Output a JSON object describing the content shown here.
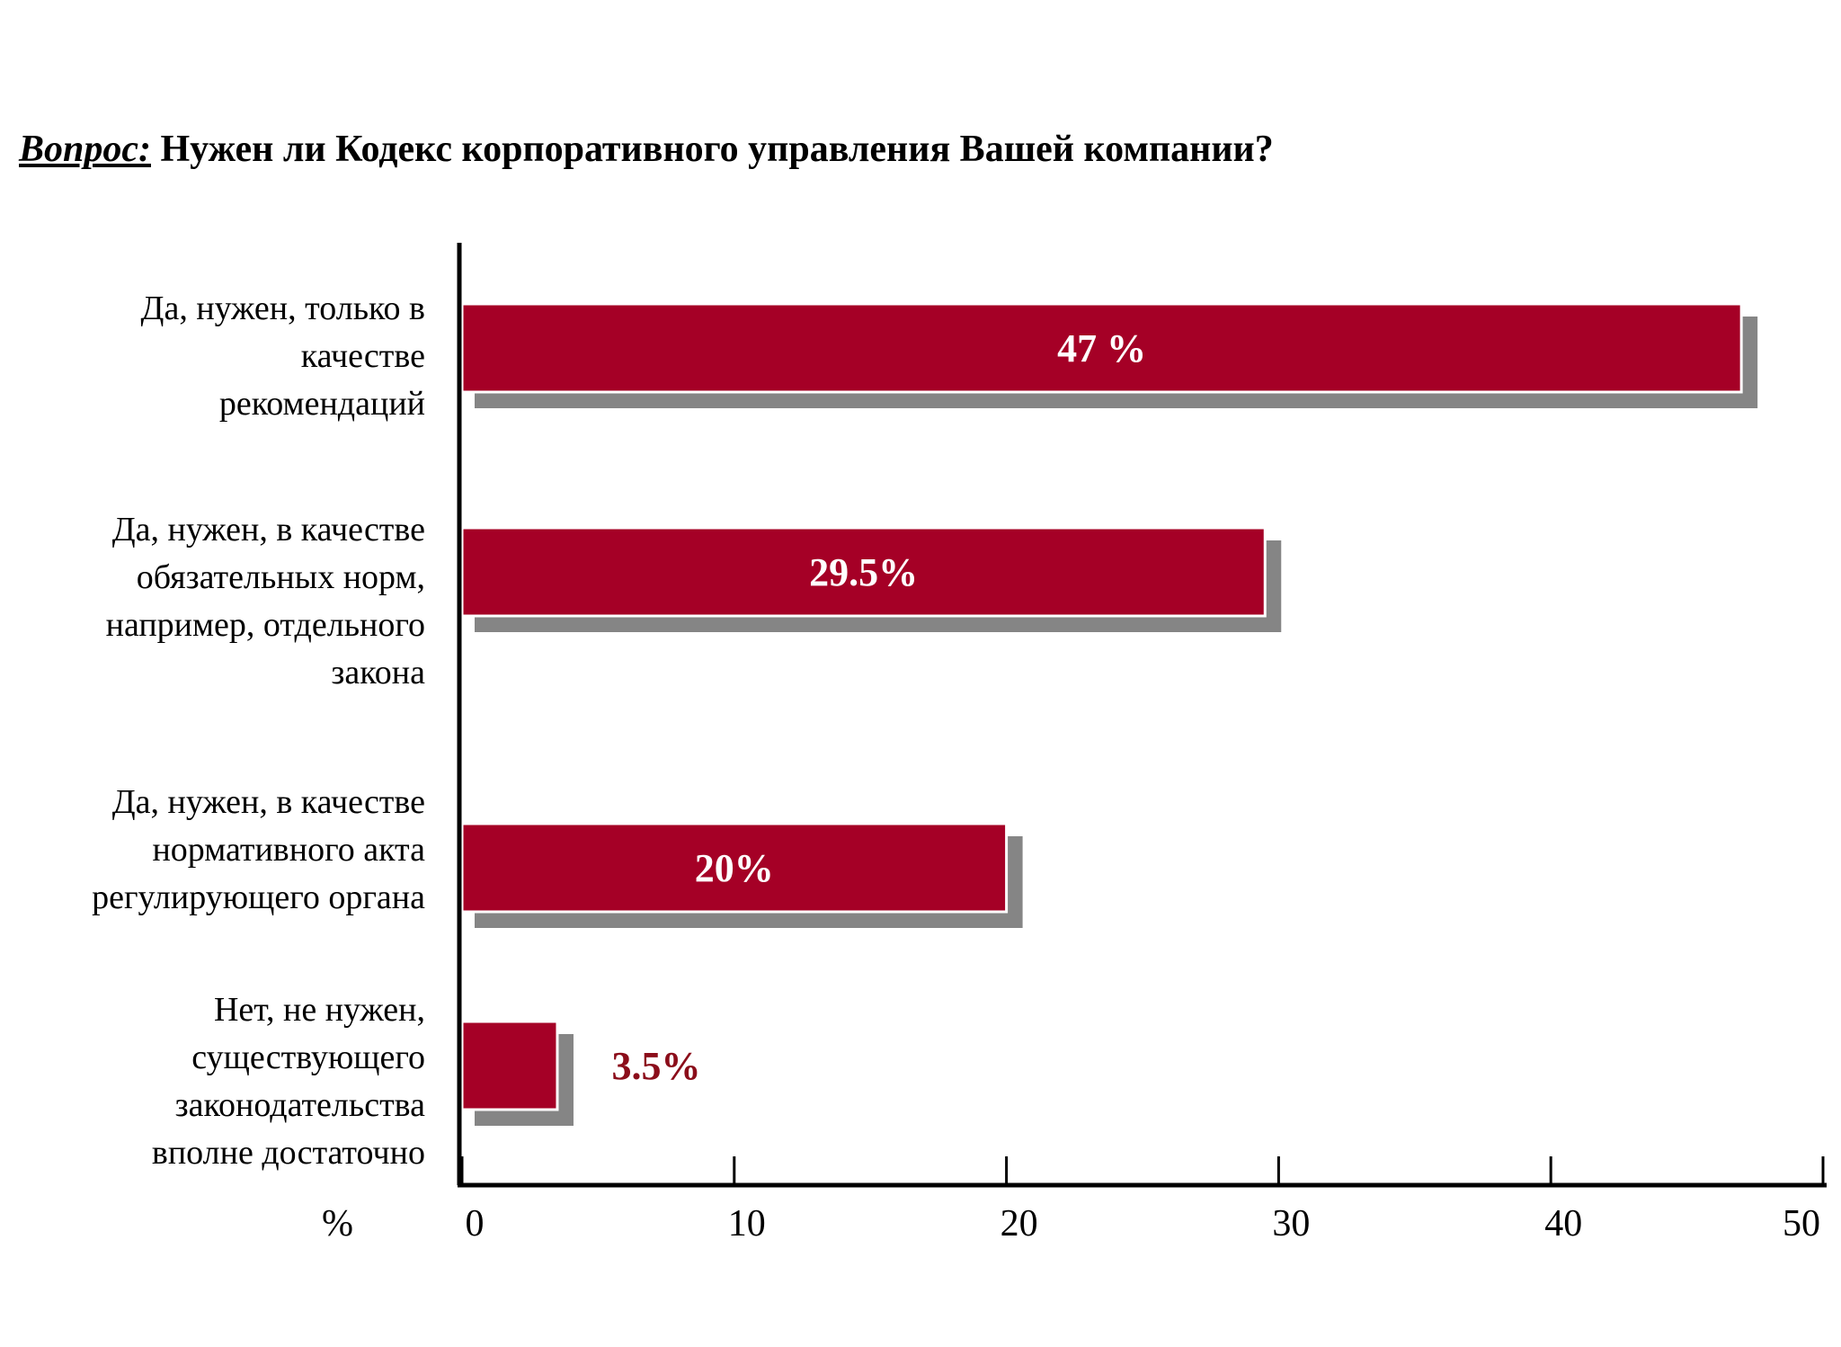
{
  "title": {
    "question": "Вопрос:",
    "text": " Нужен ли Кодекс корпоративного управления Вашей компании?"
  },
  "colors": {
    "bar": "#a50026",
    "shadow": "#858585",
    "axis": "#000000",
    "value_outside": "#8b0d1a",
    "value_inside": "#ffffff"
  },
  "chart_data": {
    "type": "bar",
    "orientation": "horizontal",
    "title": "Вопрос: Нужен ли Кодекс корпоративного управления Вашей компании?",
    "xlabel": "%",
    "ylabel": "",
    "xlim": [
      0,
      50
    ],
    "x_ticks": [
      0,
      10,
      20,
      30,
      40,
      50
    ],
    "grid": false,
    "legend": "none",
    "categories": [
      "Да, нужен, только в качестве рекомендаций",
      "Да, нужен, в качестве обязательных норм, например, отдельного закона",
      "Да, нужен, в качестве нормативного акта регулирующего органа",
      "Нет, не нужен, существующего законодательства вполне достаточно"
    ],
    "category_lines": [
      [
        "Да, нужен, только в",
        "качестве",
        "рекомендаций"
      ],
      [
        "Да, нужен, в качестве",
        "обязательных норм,",
        "например, отдельного",
        "закона"
      ],
      [
        "Да, нужен, в качестве",
        "нормативного акта",
        "регулирующего органа"
      ],
      [
        "Нет, не нужен,",
        "существующего",
        "законодательства",
        "вполне достаточно"
      ]
    ],
    "values": [
      47,
      29.5,
      20,
      3.5
    ],
    "value_labels": [
      "47 %",
      "29.5%",
      "20%",
      "3.5%"
    ]
  }
}
